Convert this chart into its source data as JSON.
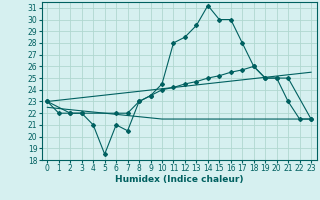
{
  "xlabel": "Humidex (Indice chaleur)",
  "background_color": "#d6f0f0",
  "grid_color": "#b0d8d0",
  "line_color": "#006060",
  "xlim": [
    -0.5,
    23.5
  ],
  "ylim": [
    18,
    31.5
  ],
  "yticks": [
    18,
    19,
    20,
    21,
    22,
    23,
    24,
    25,
    26,
    27,
    28,
    29,
    30,
    31
  ],
  "xticks": [
    0,
    1,
    2,
    3,
    4,
    5,
    6,
    7,
    8,
    9,
    10,
    11,
    12,
    13,
    14,
    15,
    16,
    17,
    18,
    19,
    20,
    21,
    22,
    23
  ],
  "line1_x": [
    0,
    1,
    2,
    3,
    4,
    5,
    6,
    7,
    8,
    9,
    10,
    11,
    12,
    13,
    14,
    15,
    16,
    17,
    18,
    19,
    20,
    21,
    22,
    23
  ],
  "line1_y": [
    23,
    22,
    22,
    22,
    21,
    18.5,
    21,
    20.5,
    23,
    23.5,
    24.5,
    28,
    28.5,
    29.5,
    31.2,
    30,
    30,
    28,
    26,
    25,
    25,
    23,
    21.5,
    21.5
  ],
  "line2_x": [
    0,
    2,
    3,
    6,
    7,
    8,
    9,
    10,
    11,
    12,
    13,
    14,
    15,
    16,
    17,
    18,
    19,
    20,
    21,
    23
  ],
  "line2_y": [
    23,
    22,
    22,
    22,
    22,
    23,
    23.5,
    24,
    24.2,
    24.5,
    24.7,
    25,
    25.2,
    25.5,
    25.7,
    26,
    25,
    25,
    25,
    21.5
  ],
  "line3_x": [
    0,
    23
  ],
  "line3_y": [
    23,
    25.5
  ],
  "line4_x": [
    0,
    10,
    23
  ],
  "line4_y": [
    22.5,
    21.5,
    21.5
  ]
}
